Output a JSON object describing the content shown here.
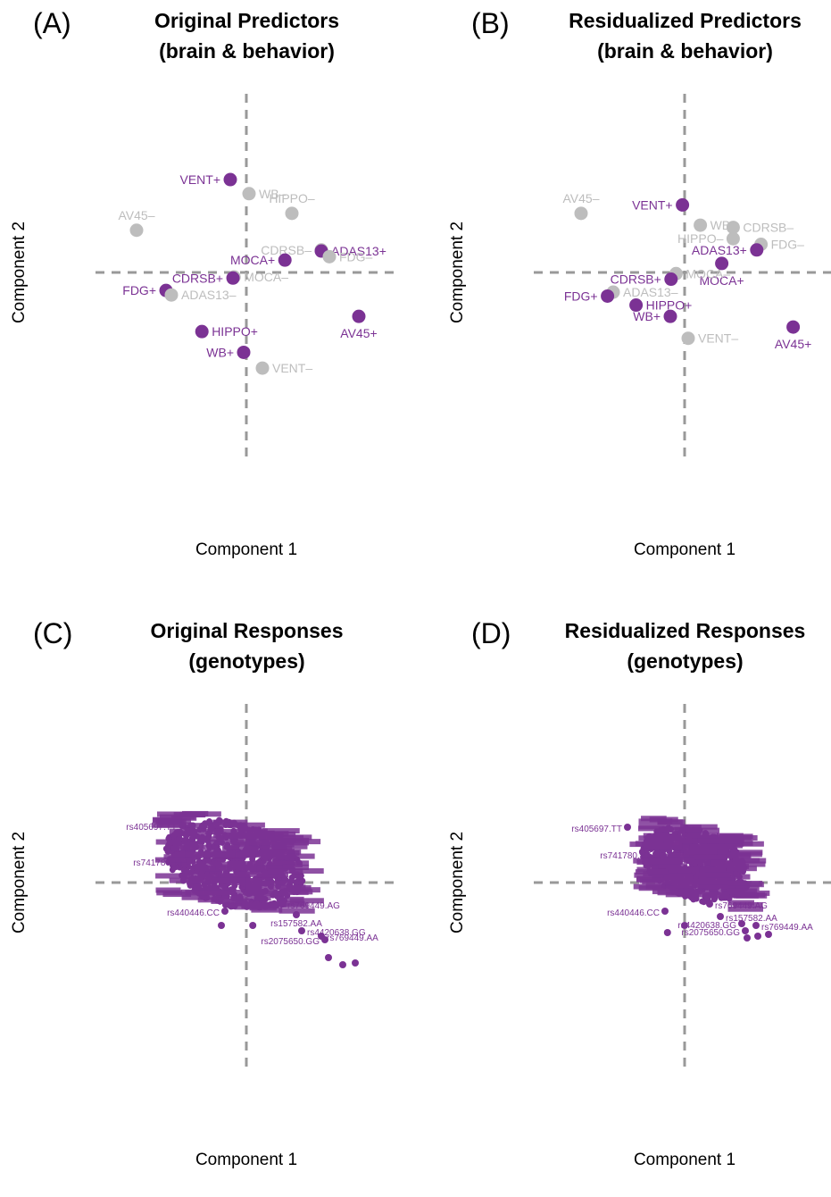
{
  "panels": {
    "a": {
      "letter": "(A)",
      "title_line1": "Original Predictors",
      "title_line2": "(brain & behavior)",
      "xlabel": "Component 1",
      "ylabel": "Component 2"
    },
    "b": {
      "letter": "(B)",
      "title_line1": "Residualized Predictors",
      "title_line2": "(brain & behavior)",
      "xlabel": "Component 1",
      "ylabel": "Component 2"
    },
    "c": {
      "letter": "(C)",
      "title_line1": "Original Responses",
      "title_line2": "(genotypes)",
      "xlabel": "Component 1",
      "ylabel": "Component 2"
    },
    "d": {
      "letter": "(D)",
      "title_line1": "Residualized Responses",
      "title_line2": "(genotypes)",
      "xlabel": "Component 1",
      "ylabel": "Component 2"
    }
  },
  "colors": {
    "positive": "#7b3294",
    "negative": "#bdbdbd",
    "axis": "#999999",
    "text": "#000000"
  },
  "chart_data": [
    {
      "panel": "A",
      "type": "scatter",
      "title": "Original Predictors (brain & behavior)",
      "xlabel": "Component 1",
      "ylabel": "Component 2",
      "xlim": [
        -4.4,
        3.1
      ],
      "ylim": [
        -3.6,
        3.3
      ],
      "reference_lines": {
        "x": 0,
        "y": 0
      },
      "points": [
        {
          "label": "VENT+",
          "x": -0.3,
          "y": 1.65,
          "group": "positive",
          "label_pos": "left"
        },
        {
          "label": "WB–",
          "x": 0.05,
          "y": 1.4,
          "group": "negative",
          "label_pos": "right"
        },
        {
          "label": "HIPPO–",
          "x": 0.85,
          "y": 1.05,
          "group": "negative",
          "label_pos": "top"
        },
        {
          "label": "AV45–",
          "x": -2.05,
          "y": 0.75,
          "group": "negative",
          "label_pos": "top"
        },
        {
          "label": "CDRSB–",
          "x": 1.4,
          "y": 0.4,
          "group": "negative",
          "label_pos": "left"
        },
        {
          "label": "ADAS13+",
          "x": 1.4,
          "y": 0.38,
          "group": "positive",
          "label_pos": "right"
        },
        {
          "label": "FDG–",
          "x": 1.55,
          "y": 0.28,
          "group": "negative",
          "label_pos": "right"
        },
        {
          "label": "MOCA+",
          "x": 0.72,
          "y": 0.22,
          "group": "positive",
          "label_pos": "left"
        },
        {
          "label": "MOCA–",
          "x": -0.23,
          "y": -0.08,
          "group": "negative",
          "label_pos": "right"
        },
        {
          "label": "CDRSB+",
          "x": -0.25,
          "y": -0.1,
          "group": "positive",
          "label_pos": "left"
        },
        {
          "label": "FDG+",
          "x": -1.5,
          "y": -0.32,
          "group": "positive",
          "label_pos": "left"
        },
        {
          "label": "ADAS13–",
          "x": -1.4,
          "y": -0.4,
          "group": "negative",
          "label_pos": "right"
        },
        {
          "label": "AV45+",
          "x": 2.1,
          "y": -0.78,
          "group": "positive",
          "label_pos": "bottom"
        },
        {
          "label": "HIPPO+",
          "x": -0.83,
          "y": -1.05,
          "group": "positive",
          "label_pos": "right"
        },
        {
          "label": "WB+",
          "x": -0.05,
          "y": -1.42,
          "group": "positive",
          "label_pos": "left"
        },
        {
          "label": "VENT–",
          "x": 0.3,
          "y": -1.7,
          "group": "negative",
          "label_pos": "right"
        }
      ]
    },
    {
      "panel": "B",
      "type": "scatter",
      "title": "Residualized Predictors (brain & behavior)",
      "xlabel": "Component 1",
      "ylabel": "Component 2",
      "xlim": [
        -2.9,
        2.9
      ],
      "ylim": [
        -2.8,
        2.7
      ],
      "reference_lines": {
        "x": 0,
        "y": 0
      },
      "points": [
        {
          "label": "AV45–",
          "x": -1.45,
          "y": 1.05,
          "group": "negative",
          "label_pos": "top"
        },
        {
          "label": "VENT+",
          "x": -0.03,
          "y": 1.2,
          "group": "positive",
          "label_pos": "left"
        },
        {
          "label": "WB–",
          "x": 0.22,
          "y": 0.84,
          "group": "negative",
          "label_pos": "right"
        },
        {
          "label": "CDRSB–",
          "x": 0.68,
          "y": 0.8,
          "group": "negative",
          "label_pos": "right"
        },
        {
          "label": "HIPPO–",
          "x": 0.68,
          "y": 0.6,
          "group": "negative",
          "label_pos": "left"
        },
        {
          "label": "FDG–",
          "x": 1.07,
          "y": 0.5,
          "group": "negative",
          "label_pos": "right"
        },
        {
          "label": "ADAS13+",
          "x": 1.01,
          "y": 0.4,
          "group": "positive",
          "label_pos": "left"
        },
        {
          "label": "MOCA+",
          "x": 0.52,
          "y": 0.16,
          "group": "positive",
          "label_pos": "bottom"
        },
        {
          "label": "MOCA–",
          "x": -0.12,
          "y": -0.02,
          "group": "negative",
          "label_pos": "right"
        },
        {
          "label": "CDRSB+",
          "x": -0.19,
          "y": -0.12,
          "group": "positive",
          "label_pos": "left"
        },
        {
          "label": "ADAS13–",
          "x": -1.0,
          "y": -0.35,
          "group": "negative",
          "label_pos": "right"
        },
        {
          "label": "FDG+",
          "x": -1.08,
          "y": -0.42,
          "group": "positive",
          "label_pos": "left"
        },
        {
          "label": "HIPPO+",
          "x": -0.68,
          "y": -0.58,
          "group": "positive",
          "label_pos": "right"
        },
        {
          "label": "WB+",
          "x": -0.2,
          "y": -0.78,
          "group": "positive",
          "label_pos": "left"
        },
        {
          "label": "AV45+",
          "x": 1.52,
          "y": -0.97,
          "group": "positive",
          "label_pos": "bottom"
        },
        {
          "label": "VENT–",
          "x": 0.05,
          "y": -1.17,
          "group": "negative",
          "label_pos": "right"
        }
      ]
    },
    {
      "panel": "C",
      "type": "scatter",
      "title": "Original Responses (genotypes)",
      "xlabel": "Component 1",
      "ylabel": "Component 2",
      "xlim": [
        -4.3,
        4.3
      ],
      "ylim": [
        -5.2,
        4.0
      ],
      "reference_lines": {
        "x": 0,
        "y": 0
      },
      "cloud": {
        "x_range": [
          -2.3,
          1.6
        ],
        "y_range": [
          -0.7,
          1.7
        ],
        "color_group": "positive"
      },
      "points": [
        {
          "label": "rs405697.TT",
          "x": -1.8,
          "y": 1.6,
          "label_pos": "left"
        },
        {
          "label": "rs741780.TT",
          "x": -1.6,
          "y": 0.6,
          "label_pos": "left"
        },
        {
          "label": "rs440446.CC",
          "x": -0.6,
          "y": -0.8,
          "label_pos": "left"
        },
        {
          "label": "rs769449.AG",
          "x": 1.0,
          "y": -0.6,
          "label_pos": "right"
        },
        {
          "label": "rs157582.AA",
          "x": 1.4,
          "y": -0.9,
          "label_pos": "bottom"
        },
        {
          "label": "rs4420638.GG",
          "x": 1.55,
          "y": -1.35,
          "label_pos": "right"
        },
        {
          "label": "rs769449.AA",
          "x": 2.1,
          "y": -1.5,
          "label_pos": "right"
        },
        {
          "label": "rs2075650.GG",
          "x": 2.2,
          "y": -1.6,
          "label_pos": "left"
        },
        {
          "label": "",
          "x": -0.7,
          "y": -1.2
        },
        {
          "label": "",
          "x": 0.18,
          "y": -1.2
        },
        {
          "label": "",
          "x": 2.3,
          "y": -2.1
        },
        {
          "label": "",
          "x": 2.7,
          "y": -2.3
        },
        {
          "label": "",
          "x": 3.05,
          "y": -2.25
        }
      ]
    },
    {
      "panel": "D",
      "type": "scatter",
      "title": "Residualized Responses (genotypes)",
      "xlabel": "Component 1",
      "ylabel": "Component 2",
      "xlim": [
        -4.3,
        4.3
      ],
      "ylim": [
        -5.2,
        4.0
      ],
      "reference_lines": {
        "x": 0,
        "y": 0
      },
      "cloud": {
        "x_range": [
          -1.2,
          1.8
        ],
        "y_range": [
          -0.5,
          1.5
        ],
        "color_group": "positive"
      },
      "points": [
        {
          "label": "rs405697.TT",
          "x": -1.6,
          "y": 1.55,
          "label_pos": "left"
        },
        {
          "label": "rs741780.TT",
          "x": -0.8,
          "y": 0.8,
          "label_pos": "left"
        },
        {
          "label": "rs440446.CC",
          "x": -0.55,
          "y": -0.8,
          "label_pos": "left"
        },
        {
          "label": "rs769449.AG",
          "x": 0.7,
          "y": -0.6,
          "label_pos": "right"
        },
        {
          "label": "rs157582.AA",
          "x": 1.0,
          "y": -0.95,
          "label_pos": "right"
        },
        {
          "label": "rs4420638.GG",
          "x": 1.6,
          "y": -1.15,
          "label_pos": "left"
        },
        {
          "label": "rs769449.AA",
          "x": 2.0,
          "y": -1.2,
          "label_pos": "right"
        },
        {
          "label": "rs2075650.GG",
          "x": 1.7,
          "y": -1.35,
          "label_pos": "left"
        },
        {
          "label": "",
          "x": -0.48,
          "y": -1.4
        },
        {
          "label": "",
          "x": 0.0,
          "y": -1.2
        },
        {
          "label": "",
          "x": 1.75,
          "y": -1.55
        },
        {
          "label": "",
          "x": 2.05,
          "y": -1.5
        },
        {
          "label": "",
          "x": 2.35,
          "y": -1.45
        }
      ]
    }
  ]
}
